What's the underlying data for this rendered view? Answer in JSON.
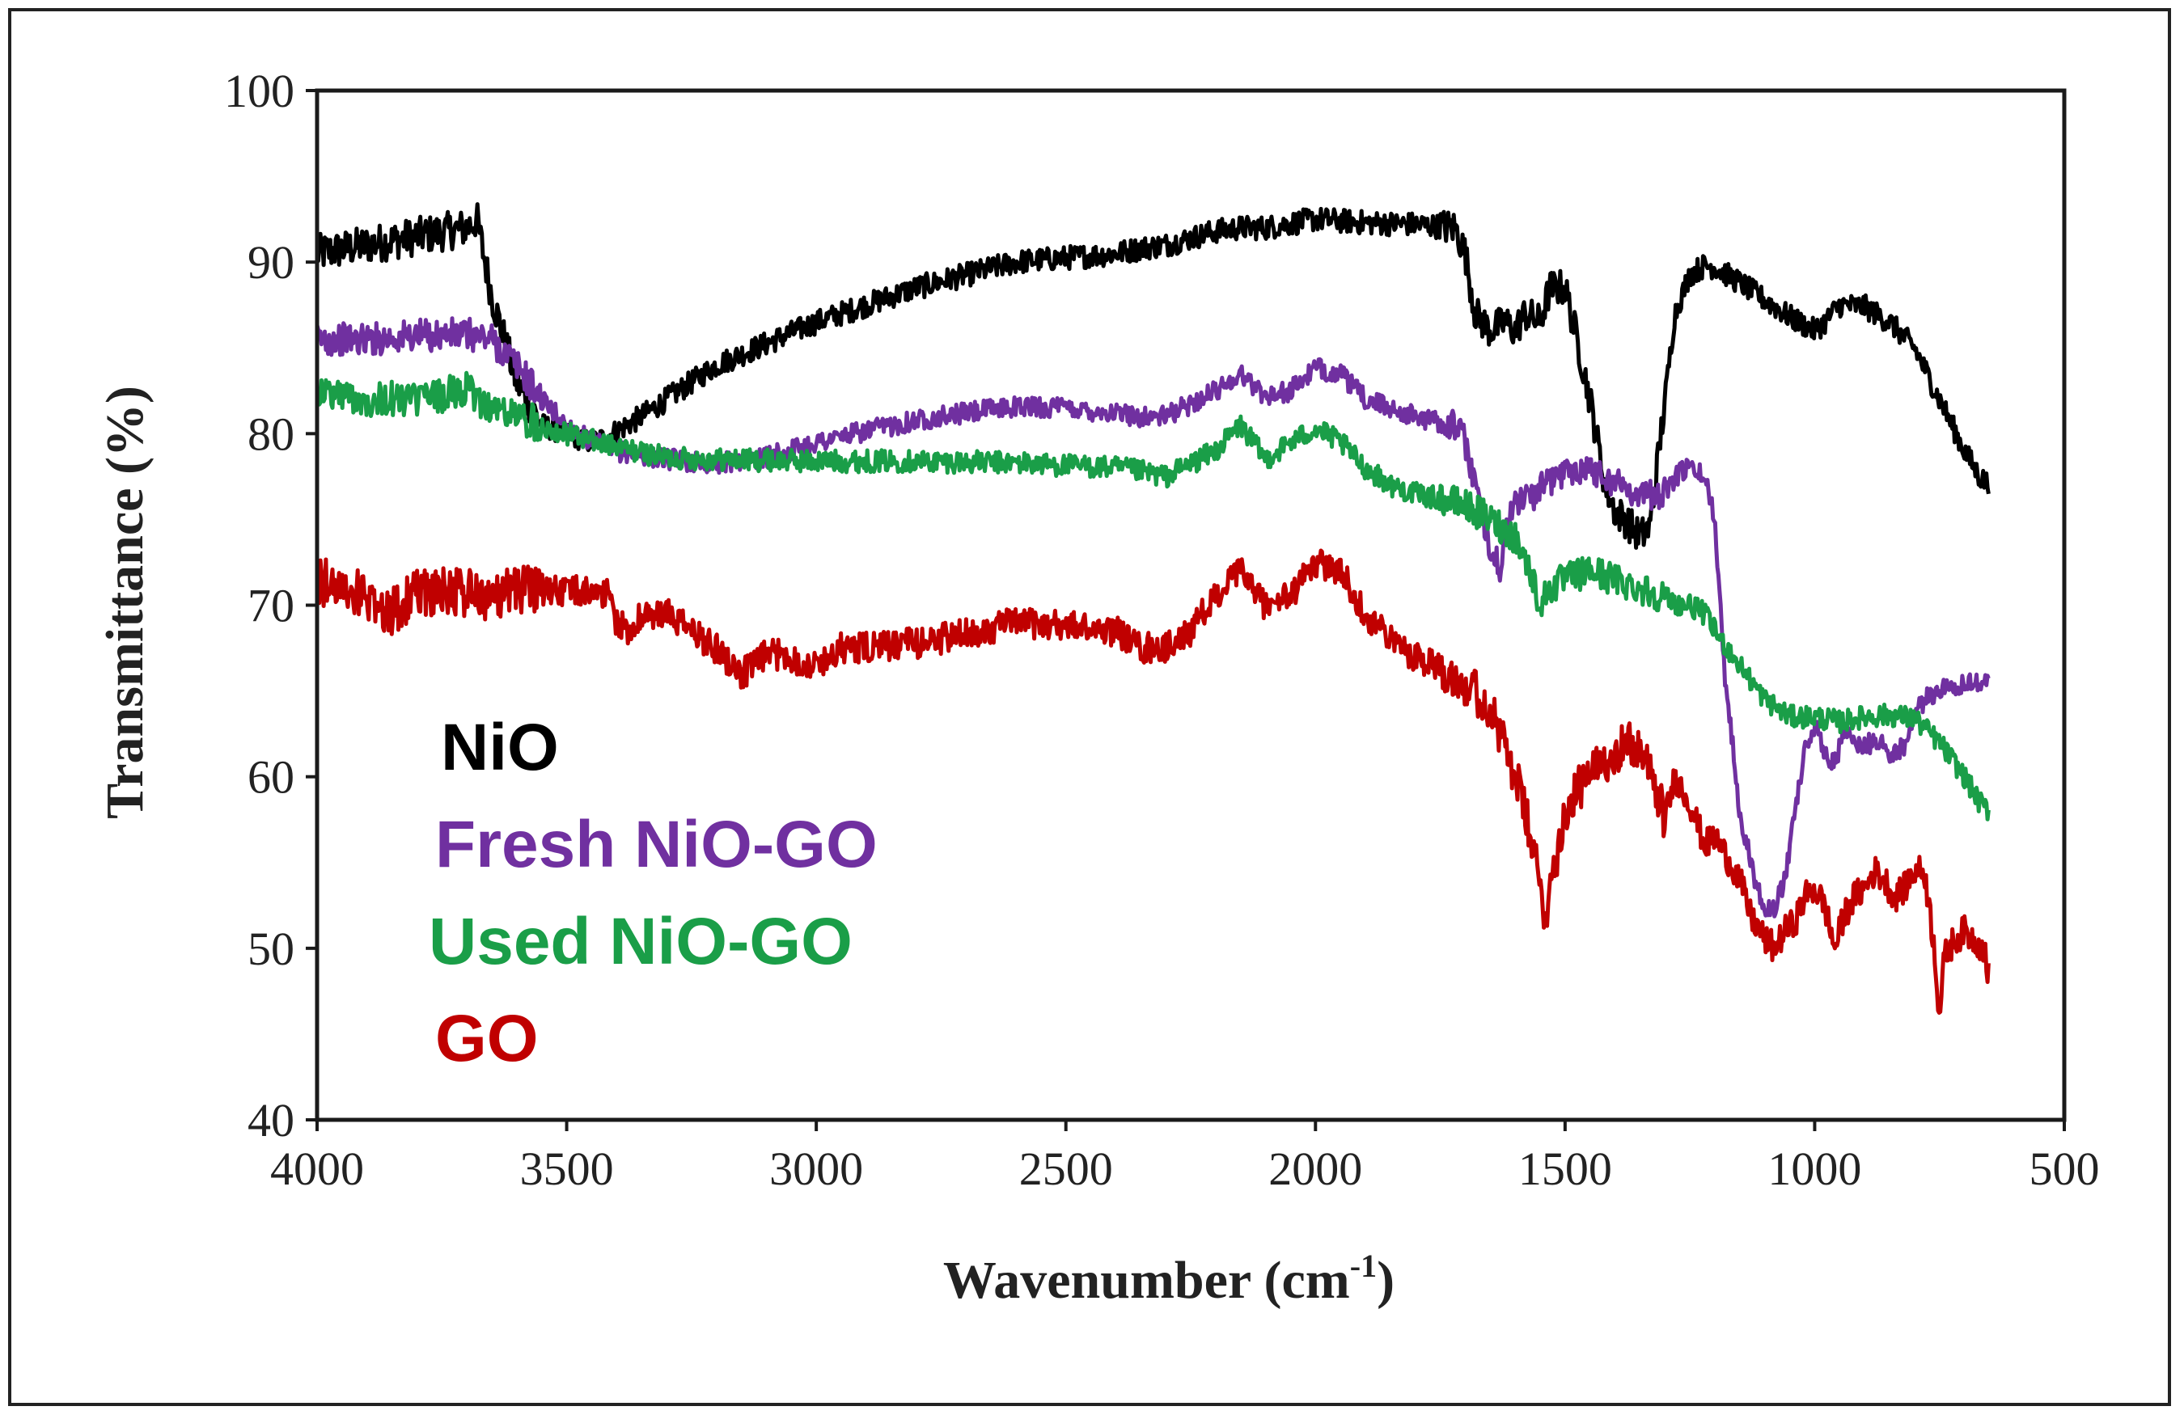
{
  "chart_data": {
    "type": "line",
    "title": "",
    "xlabel": "Wavenumber (cm",
    "xlabel_sup": "-1",
    "xlabel_close": ")",
    "ylabel": "Transmittance (%)",
    "xlim": [
      4000,
      500
    ],
    "ylim": [
      40,
      100
    ],
    "xticks": [
      "4000",
      "3500",
      "3000",
      "2500",
      "2000",
      "1500",
      "1000",
      "500"
    ],
    "yticks": [
      "40",
      "50",
      "60",
      "70",
      "80",
      "90",
      "100"
    ],
    "grid": false,
    "legend_position": "center-left",
    "series": [
      {
        "name": "NiO",
        "color": "#000000",
        "noise": 0.7,
        "x": [
          4000,
          3900,
          3800,
          3700,
          3680,
          3650,
          3600,
          3550,
          3500,
          3450,
          3420,
          3350,
          3200,
          3000,
          2800,
          2600,
          2400,
          2350,
          2300,
          2200,
          2150,
          2100,
          2000,
          1900,
          1800,
          1720,
          1700,
          1680,
          1650,
          1620,
          1600,
          1580,
          1550,
          1530,
          1500,
          1480,
          1450,
          1420,
          1400,
          1380,
          1350,
          1330,
          1300,
          1280,
          1250,
          1220,
          1200,
          1150,
          1100,
          1050,
          1000,
          980,
          950,
          900,
          850,
          800,
          750,
          700,
          670,
          650
        ],
        "values": [
          90.5,
          91,
          91.5,
          92,
          92.5,
          88,
          83,
          80.5,
          80,
          79.5,
          79.8,
          81,
          84,
          86.5,
          88.5,
          90,
          90.5,
          90.8,
          91,
          91.8,
          92,
          92,
          92.5,
          92.3,
          92.2,
          92,
          90.5,
          87,
          86,
          86.5,
          86,
          87,
          86.5,
          88.5,
          88.5,
          86,
          82,
          77,
          75.5,
          75,
          74,
          74.5,
          82,
          87,
          89.3,
          89.8,
          89.7,
          88.8,
          87.8,
          86.8,
          86,
          86.5,
          87.5,
          87.4,
          86.5,
          85,
          82,
          79,
          77.5,
          77
        ]
      },
      {
        "name": "Fresh NiO-GO",
        "color": "#7030a0",
        "noise": 0.6,
        "x": [
          4000,
          3900,
          3800,
          3700,
          3650,
          3600,
          3550,
          3500,
          3450,
          3400,
          3300,
          3200,
          3100,
          3000,
          2800,
          2600,
          2500,
          2400,
          2350,
          2300,
          2200,
          2150,
          2100,
          2050,
          2000,
          1950,
          1900,
          1800,
          1720,
          1700,
          1680,
          1650,
          1630,
          1620,
          1600,
          1560,
          1520,
          1480,
          1450,
          1400,
          1350,
          1300,
          1270,
          1250,
          1220,
          1200,
          1180,
          1150,
          1120,
          1100,
          1080,
          1060,
          1040,
          1020,
          1000,
          980,
          960,
          940,
          920,
          900,
          870,
          850,
          820,
          800,
          780,
          760,
          740,
          720,
          700,
          680,
          650
        ],
        "values": [
          85.5,
          85.5,
          85.7,
          85.8,
          85.5,
          84,
          82,
          80.5,
          79.5,
          79,
          78.5,
          78.3,
          78.6,
          79.5,
          80.8,
          81.6,
          81.5,
          81.2,
          81,
          81,
          82.5,
          83.5,
          82.2,
          82.5,
          83.8,
          83.5,
          82,
          81,
          80.5,
          79.5,
          77,
          73.5,
          72,
          74,
          76,
          76.5,
          77.5,
          78,
          78,
          77.2,
          76.5,
          76.5,
          77.8,
          78,
          77.5,
          75,
          66,
          58,
          54,
          52.5,
          52.3,
          54,
          58,
          61.5,
          63,
          61.5,
          60.8,
          62.5,
          62,
          61.8,
          62.2,
          61.3,
          61.8,
          63.5,
          64.5,
          64.8,
          65.3,
          65.4,
          65.3,
          65.5,
          65.5
        ]
      },
      {
        "name": "Used NiO-GO",
        "color": "#1a9e48",
        "noise": 0.65,
        "x": [
          4000,
          3900,
          3800,
          3700,
          3650,
          3600,
          3550,
          3500,
          3400,
          3300,
          3200,
          3000,
          2800,
          2600,
          2400,
          2350,
          2300,
          2200,
          2150,
          2100,
          2050,
          2000,
          1950,
          1900,
          1850,
          1800,
          1750,
          1700,
          1650,
          1600,
          1570,
          1550,
          1530,
          1500,
          1450,
          1400,
          1350,
          1300,
          1270,
          1250,
          1220,
          1200,
          1150,
          1100,
          1050,
          1000,
          950,
          900,
          850,
          800,
          750,
          700,
          670,
          650
        ],
        "values": [
          82.5,
          82,
          82,
          82.5,
          81.5,
          81,
          80.5,
          80,
          79.2,
          78.6,
          78.5,
          78.4,
          78.4,
          78.3,
          78,
          77.8,
          77.5,
          79,
          80.5,
          78.5,
          79.5,
          80.3,
          79.5,
          78,
          77,
          76.5,
          76.2,
          75.8,
          75,
          74,
          72,
          70,
          71,
          71.5,
          72,
          71.5,
          71,
          70.5,
          70,
          70,
          69.5,
          68.5,
          66.5,
          64.5,
          63.5,
          63.5,
          63.2,
          63.5,
          63.6,
          63.4,
          62,
          60,
          58.5,
          58
        ]
      },
      {
        "name": "GO",
        "color": "#c00000",
        "noise": 0.9,
        "x": [
          4000,
          3900,
          3850,
          3800,
          3700,
          3650,
          3600,
          3500,
          3420,
          3400,
          3380,
          3350,
          3300,
          3250,
          3200,
          3150,
          3120,
          3100,
          3050,
          3020,
          3000,
          2950,
          2900,
          2800,
          2700,
          2600,
          2500,
          2400,
          2350,
          2300,
          2250,
          2200,
          2150,
          2100,
          2050,
          2000,
          1950,
          1900,
          1850,
          1800,
          1750,
          1700,
          1650,
          1600,
          1580,
          1560,
          1540,
          1520,
          1500,
          1480,
          1450,
          1420,
          1400,
          1380,
          1350,
          1320,
          1300,
          1280,
          1250,
          1220,
          1200,
          1180,
          1150,
          1130,
          1100,
          1080,
          1060,
          1040,
          1020,
          1000,
          980,
          960,
          940,
          920,
          900,
          880,
          860,
          840,
          820,
          800,
          780,
          760,
          750,
          740,
          720,
          700,
          680,
          660,
          650
        ],
        "values": [
          71.5,
          70.5,
          69.5,
          70.8,
          70.8,
          70.5,
          71,
          70.8,
          70.8,
          69,
          68.5,
          69.3,
          69.5,
          68.5,
          67.5,
          66,
          66.5,
          67.2,
          67,
          66.5,
          66.5,
          67.5,
          67.5,
          67.8,
          68.3,
          69,
          68.8,
          68.5,
          67.5,
          67.5,
          68.5,
          70.5,
          72,
          70,
          70.5,
          72.5,
          72,
          69.5,
          68,
          67,
          66.5,
          65.5,
          64,
          60,
          58,
          55,
          52,
          55,
          58,
          59,
          60,
          61,
          61.5,
          62,
          61.5,
          59.5,
          57.5,
          60,
          58.5,
          56,
          56.5,
          55.5,
          54,
          52,
          50.5,
          50,
          51,
          51.5,
          53,
          53.5,
          52.5,
          50,
          52,
          53,
          53.5,
          54.5,
          54,
          53,
          53.5,
          54.5,
          54.5,
          50,
          46,
          49.5,
          50.5,
          51,
          50.5,
          50,
          48
        ]
      }
    ]
  }
}
